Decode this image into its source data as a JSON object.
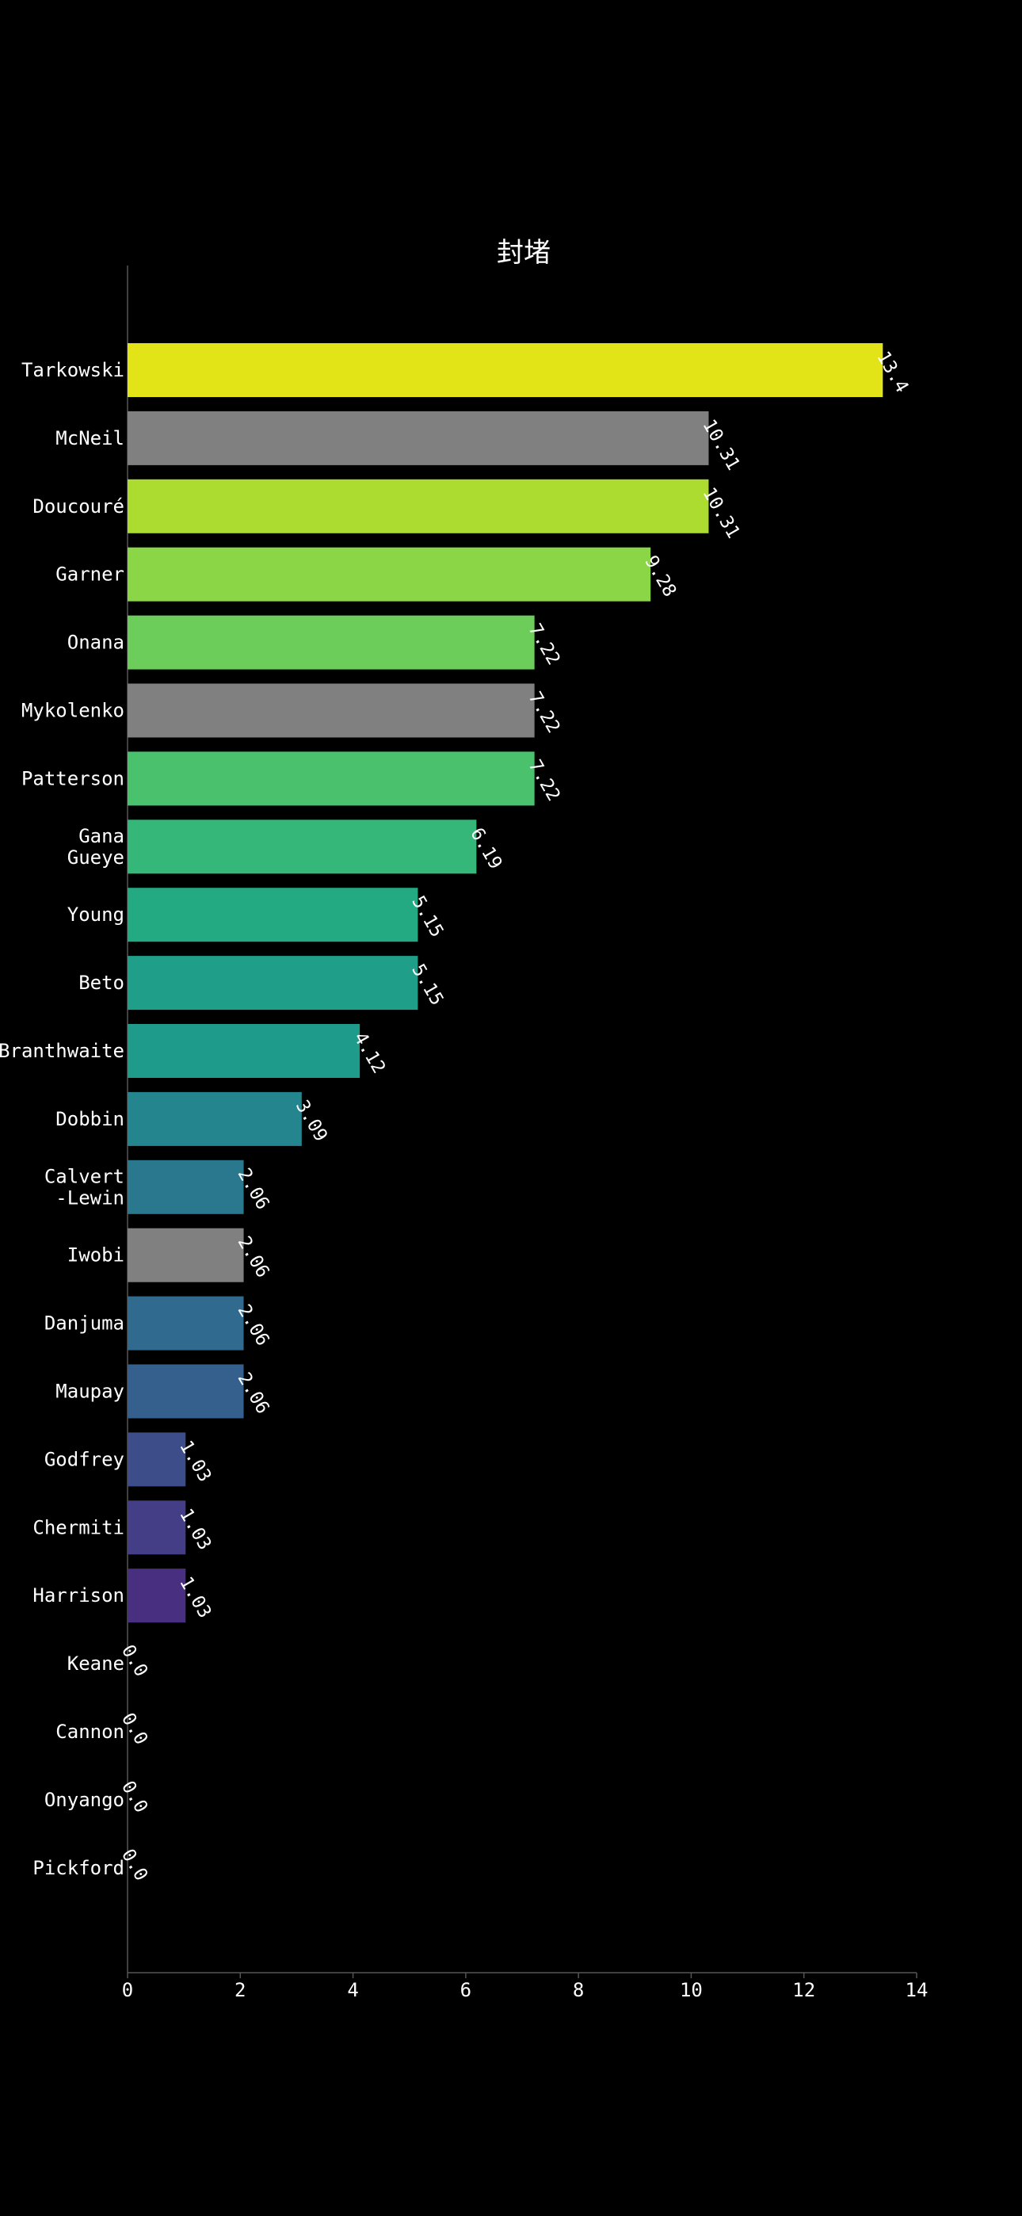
{
  "chart_data": {
    "type": "bar",
    "orientation": "horizontal",
    "title": "封堵",
    "xlabel": "",
    "ylabel": "",
    "xlim": [
      0,
      14
    ],
    "xticks": [
      0,
      2,
      4,
      6,
      8,
      10,
      12,
      14
    ],
    "grid": false,
    "legend": "none",
    "background": "#000000",
    "categories": [
      [
        "Tarkowski"
      ],
      [
        "McNeil"
      ],
      [
        "Doucouré"
      ],
      [
        "Garner"
      ],
      [
        "Onana"
      ],
      [
        "Mykolenko"
      ],
      [
        "Patterson"
      ],
      [
        "Gana",
        "Gueye"
      ],
      [
        "Young"
      ],
      [
        "Beto"
      ],
      [
        "Branthwaite"
      ],
      [
        "Dobbin"
      ],
      [
        "Calvert",
        "-Lewin"
      ],
      [
        "Iwobi"
      ],
      [
        "Danjuma"
      ],
      [
        "Maupay"
      ],
      [
        "Godfrey"
      ],
      [
        "Chermiti"
      ],
      [
        "Harrison"
      ],
      [
        "Keane"
      ],
      [
        "Cannon"
      ],
      [
        "Onyango"
      ],
      [
        "Pickford"
      ]
    ],
    "values": [
      13.4,
      10.31,
      10.31,
      9.28,
      7.22,
      7.22,
      7.22,
      6.19,
      5.15,
      5.15,
      4.12,
      3.09,
      2.06,
      2.06,
      2.06,
      2.06,
      1.03,
      1.03,
      1.03,
      0.0,
      0.0,
      0.0,
      0.0
    ],
    "value_labels": [
      "13.4",
      "10.31",
      "10.31",
      "9.28",
      "7.22",
      "7.22",
      "7.22",
      "6.19",
      "5.15",
      "5.15",
      "4.12",
      "3.09",
      "2.06",
      "2.06",
      "2.06",
      "2.06",
      "1.03",
      "1.03",
      "1.03",
      "0.0",
      "0.0",
      "0.0",
      "0.0"
    ],
    "colors": [
      "#e2e418",
      "#808080",
      "#addc30",
      "#8bd646",
      "#6ccd5a",
      "#808080",
      "#4ac16d",
      "#35b779",
      "#24aa83",
      "#1f9e89",
      "#1e9b8a",
      "#25858e",
      "#2a788e",
      "#808080",
      "#306a8e",
      "#355f8d",
      "#3d4d8a",
      "#433e85",
      "#482f80",
      "#471d6d",
      "#46196b",
      "#440e60",
      "#440154"
    ]
  }
}
